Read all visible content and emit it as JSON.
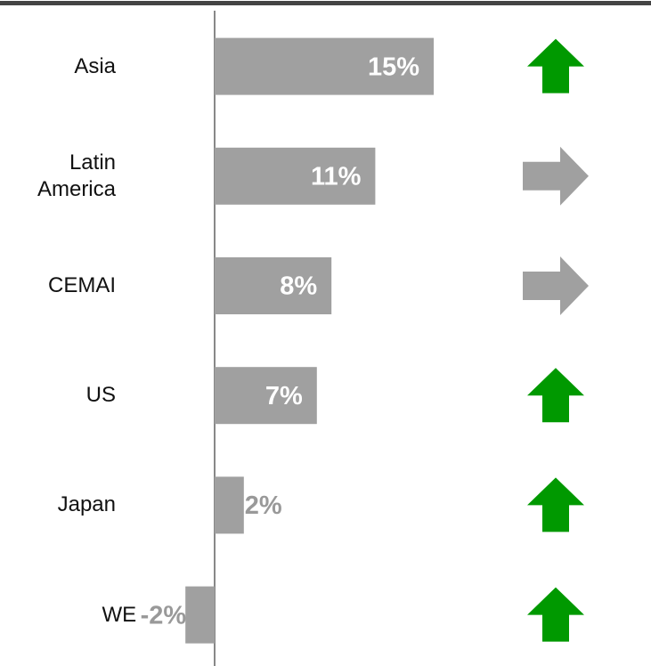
{
  "chart_data": {
    "type": "bar",
    "orientation": "horizontal",
    "categories": [
      "Asia",
      "Latin America",
      "CEMAI",
      "US",
      "Japan",
      "WE"
    ],
    "values": [
      15,
      11,
      8,
      7,
      2,
      -2
    ],
    "value_labels": [
      "15%",
      "11%",
      "8%",
      "7%",
      "2%",
      "-2%"
    ],
    "color": "#a0a0a0",
    "trend": [
      "up",
      "right",
      "right",
      "up",
      "up",
      "up"
    ],
    "trend_colors": {
      "up": "#009900",
      "right": "#a0a0a0"
    }
  }
}
